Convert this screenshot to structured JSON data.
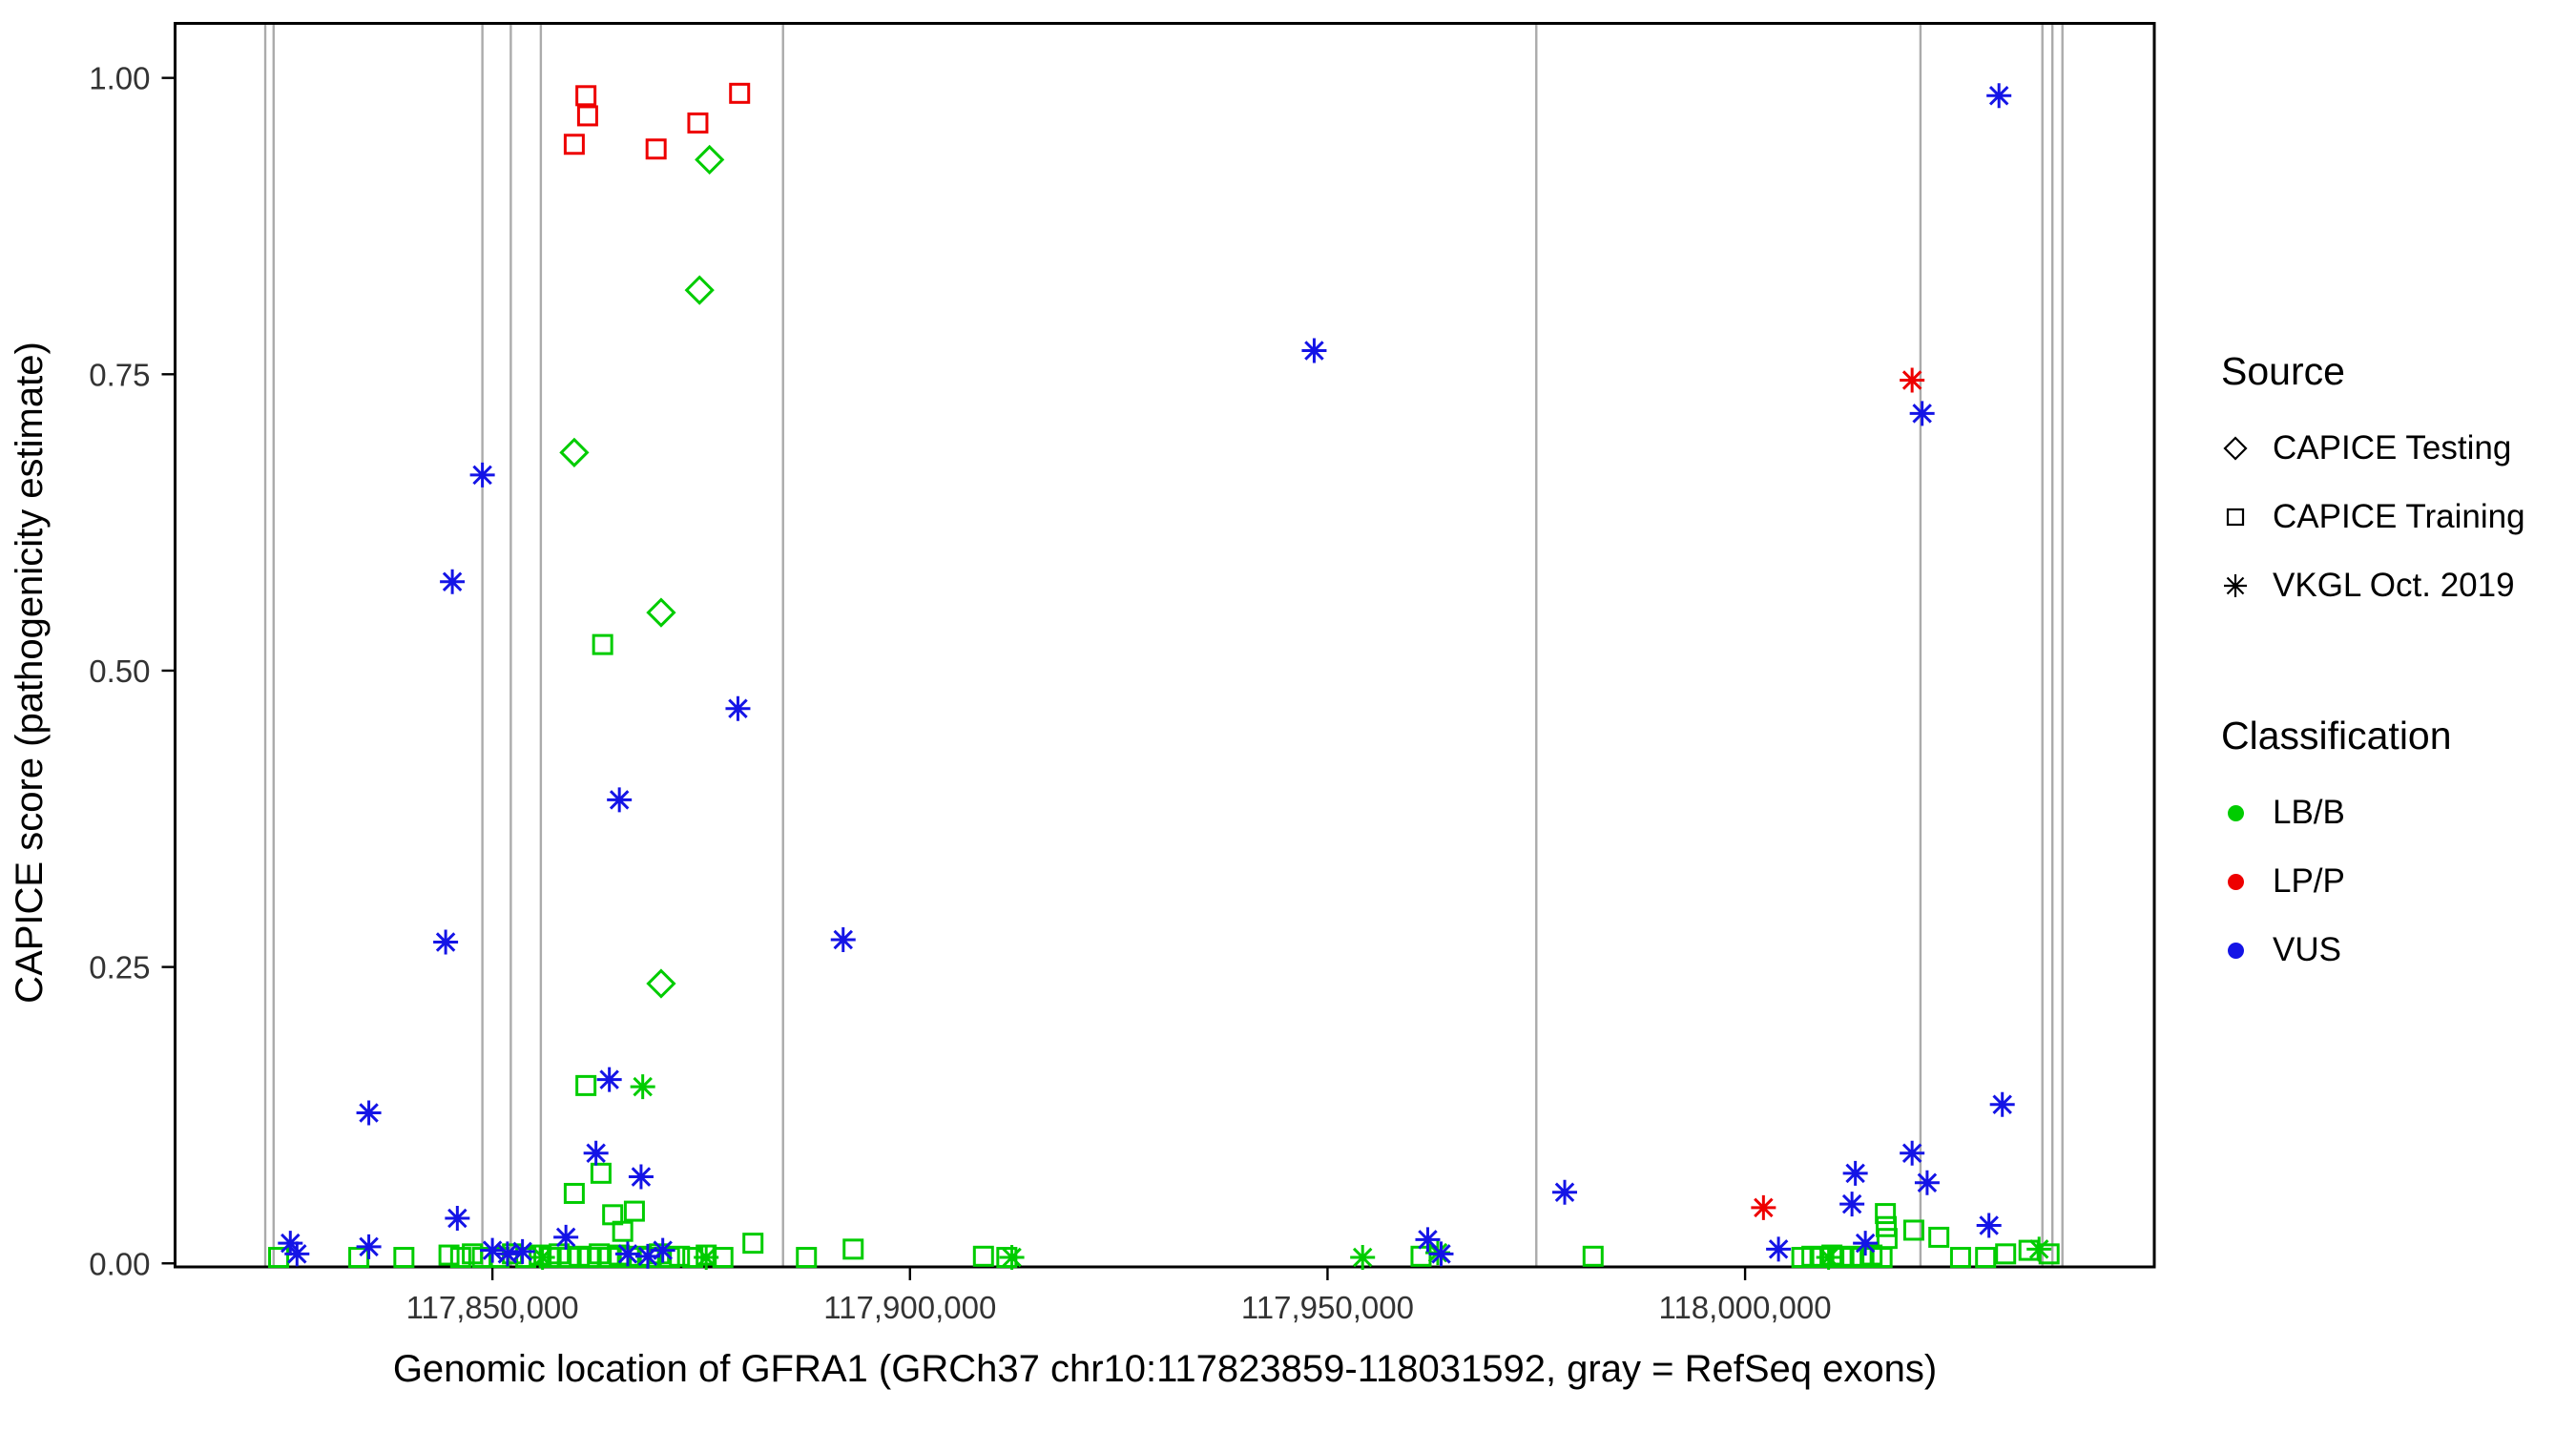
{
  "legend": {
    "source": {
      "title": "Source",
      "items": [
        {
          "label": "CAPICE Testing",
          "shape": "diamond"
        },
        {
          "label": "CAPICE Training",
          "shape": "square"
        },
        {
          "label": "VKGL Oct. 2019",
          "shape": "asterisk"
        }
      ]
    },
    "classification": {
      "title": "Classification",
      "items": [
        {
          "label": "LB/B",
          "color": "#00CC00"
        },
        {
          "label": "LP/P",
          "color": "#EE0000"
        },
        {
          "label": "VUS",
          "color": "#1414E6"
        }
      ]
    }
  },
  "chart_data": {
    "type": "scatter",
    "title": "",
    "xlabel": "Genomic location of GFRA1 (GRCh37 chr10:117823859-118031592, gray = RefSeq exons)",
    "ylabel": "CAPICE score (pathogenicity estimate)",
    "xlim": [
      117812000,
      118049000
    ],
    "ylim": [
      -0.003,
      1.046
    ],
    "grid": false,
    "legend_position": "right",
    "x_ticks": [
      117850000,
      117900000,
      117950000,
      118000000
    ],
    "x_tick_labels": [
      "117,850,000",
      "117,900,000",
      "117,950,000",
      "118,000,000"
    ],
    "y_ticks": [
      0,
      0.25,
      0.5,
      0.75,
      1.0
    ],
    "y_tick_labels": [
      "0.00",
      "0.25",
      "0.50",
      "0.75",
      "1.00"
    ],
    "exon_line_color": "#ABABAB",
    "exon_lines_x": [
      117822800,
      117823800,
      117848800,
      117852200,
      117855800,
      117884800,
      117975000,
      118021000,
      118035600,
      118036800,
      118038000
    ],
    "series": [
      {
        "name": "CAPICE Testing / LB/B",
        "source": "CAPICE Testing",
        "classification": "LB/B",
        "shape": "diamond",
        "color": "#00CC00",
        "points": [
          [
            117876000,
            0.931
          ],
          [
            117874800,
            0.821
          ],
          [
            117859800,
            0.684
          ],
          [
            117870200,
            0.549
          ],
          [
            117870200,
            0.236
          ]
        ]
      },
      {
        "name": "CAPICE Training / LP/P",
        "source": "CAPICE Training",
        "classification": "LP/P",
        "shape": "square",
        "color": "#EE0000",
        "points": [
          [
            117861200,
            0.985
          ],
          [
            117861400,
            0.968
          ],
          [
            117859800,
            0.944
          ],
          [
            117869600,
            0.94
          ],
          [
            117874600,
            0.962
          ],
          [
            117879600,
            0.987
          ]
        ]
      },
      {
        "name": "CAPICE Training / LB/B",
        "source": "CAPICE Training",
        "classification": "LB/B",
        "shape": "square",
        "color": "#00CC00",
        "points": [
          [
            117863200,
            0.522
          ],
          [
            117861200,
            0.15
          ],
          [
            117859800,
            0.059
          ],
          [
            117863000,
            0.076
          ],
          [
            117864400,
            0.041
          ],
          [
            117867000,
            0.044
          ],
          [
            117865600,
            0.027
          ],
          [
            117881200,
            0.017
          ],
          [
            117824400,
            0.005
          ],
          [
            117834000,
            0.005
          ],
          [
            117839400,
            0.005
          ],
          [
            117844800,
            0.007
          ],
          [
            117846200,
            0.005
          ],
          [
            117847600,
            0.008
          ],
          [
            117848800,
            0.005
          ],
          [
            117850800,
            0.005
          ],
          [
            117852400,
            0.008
          ],
          [
            117854000,
            0.005
          ],
          [
            117855600,
            0.007
          ],
          [
            117856800,
            0.005
          ],
          [
            117858000,
            0.008
          ],
          [
            117859200,
            0.005
          ],
          [
            117860400,
            0.006
          ],
          [
            117861600,
            0.005
          ],
          [
            117862800,
            0.008
          ],
          [
            117864000,
            0.005
          ],
          [
            117865200,
            0.007
          ],
          [
            117866400,
            0.005
          ],
          [
            117867600,
            0.006
          ],
          [
            117868800,
            0.005
          ],
          [
            117870000,
            0.008
          ],
          [
            117871200,
            0.005
          ],
          [
            117872400,
            0.006
          ],
          [
            117874000,
            0.005
          ],
          [
            117875600,
            0.007
          ],
          [
            117877600,
            0.005
          ],
          [
            117887600,
            0.005
          ],
          [
            117893200,
            0.012
          ],
          [
            117908800,
            0.006
          ],
          [
            117911600,
            0.005
          ],
          [
            117961200,
            0.006
          ],
          [
            117981800,
            0.006
          ],
          [
            118006800,
            0.005
          ],
          [
            118008000,
            0.006
          ],
          [
            118009200,
            0.005
          ],
          [
            118010400,
            0.007
          ],
          [
            118011600,
            0.005
          ],
          [
            118012800,
            0.006
          ],
          [
            118014000,
            0.005
          ],
          [
            118015200,
            0.007
          ],
          [
            118016400,
            0.005
          ],
          [
            118016800,
            0.042
          ],
          [
            118016900,
            0.031
          ],
          [
            118017000,
            0.021
          ],
          [
            118020200,
            0.028
          ],
          [
            118023200,
            0.022
          ],
          [
            118025800,
            0.005
          ],
          [
            118028800,
            0.005
          ],
          [
            118031200,
            0.008
          ],
          [
            118034000,
            0.011
          ],
          [
            118036400,
            0.008
          ]
        ]
      },
      {
        "name": "VKGL Oct. 2019 / LB/B",
        "source": "VKGL Oct. 2019",
        "classification": "LB/B",
        "shape": "asterisk",
        "color": "#00CC00",
        "points": [
          [
            117868000,
            0.149
          ],
          [
            117856000,
            0.005
          ],
          [
            117875600,
            0.005
          ],
          [
            117912200,
            0.005
          ],
          [
            117954200,
            0.005
          ],
          [
            117963200,
            0.009
          ],
          [
            118010000,
            0.005
          ],
          [
            118035200,
            0.012
          ]
        ]
      },
      {
        "name": "VKGL Oct. 2019 / LP/P",
        "source": "VKGL Oct. 2019",
        "classification": "LP/P",
        "shape": "asterisk",
        "color": "#EE0000",
        "points": [
          [
            118020000,
            0.745
          ],
          [
            118002200,
            0.047
          ]
        ]
      },
      {
        "name": "VKGL Oct. 2019 / VUS",
        "source": "VKGL Oct. 2019",
        "classification": "VUS",
        "shape": "asterisk",
        "color": "#1414E6",
        "points": [
          [
            117848800,
            0.665
          ],
          [
            117845200,
            0.575
          ],
          [
            117865200,
            0.391
          ],
          [
            117879400,
            0.468
          ],
          [
            117892000,
            0.273
          ],
          [
            117844400,
            0.271
          ],
          [
            117835200,
            0.127
          ],
          [
            117864000,
            0.155
          ],
          [
            117862400,
            0.093
          ],
          [
            117867800,
            0.073
          ],
          [
            117845800,
            0.038
          ],
          [
            117948400,
            0.77
          ],
          [
            117978400,
            0.06
          ],
          [
            118021200,
            0.717
          ],
          [
            118030400,
            0.985
          ],
          [
            118013200,
            0.076
          ],
          [
            118020000,
            0.093
          ],
          [
            118021800,
            0.068
          ],
          [
            118030800,
            0.134
          ],
          [
            118029200,
            0.032
          ],
          [
            117825800,
            0.017
          ],
          [
            117826600,
            0.008
          ],
          [
            117835200,
            0.014
          ],
          [
            117850000,
            0.011
          ],
          [
            117851800,
            0.008
          ],
          [
            117853600,
            0.01
          ],
          [
            117858800,
            0.022
          ],
          [
            117866200,
            0.008
          ],
          [
            117868600,
            0.006
          ],
          [
            117870400,
            0.011
          ],
          [
            117962000,
            0.02
          ],
          [
            117963600,
            0.008
          ],
          [
            118014400,
            0.017
          ],
          [
            118012800,
            0.05
          ],
          [
            118004000,
            0.012
          ]
        ]
      }
    ]
  }
}
